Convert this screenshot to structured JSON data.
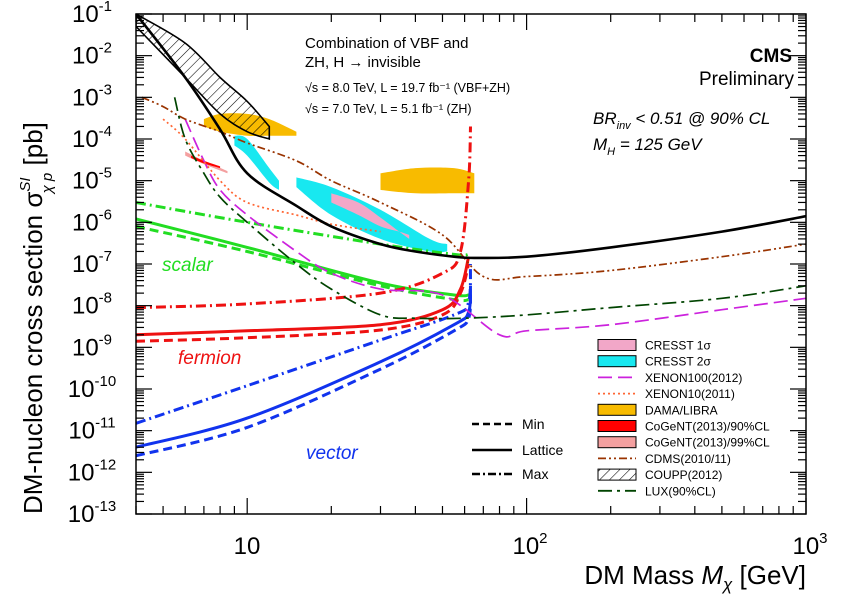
{
  "chart_data": {
    "type": "line",
    "xscale": "log",
    "yscale": "log",
    "xlim": [
      4,
      1000
    ],
    "ylim": [
      1e-13,
      0.1
    ],
    "xlabel": "DM Mass M_χ [GeV]",
    "ylabel": "DM-nucleon cross section σ^{SI}_{χp} [pb]",
    "x_tick_labels": [
      "10",
      "10^2",
      "10^3"
    ],
    "y_tick_labels": [
      "10^-1",
      "10^-2",
      "10^-3",
      "10^-4",
      "10^-5",
      "10^-6",
      "10^-7",
      "10^-8",
      "10^-9",
      "10^-10",
      "10^-11",
      "10^-12",
      "10^-13"
    ],
    "annotations": {
      "combination": [
        "Combination of VBF and",
        "ZH, H → invisible"
      ],
      "lumi_8tev": "√s = 8.0 TeV, L = 19.7 fb⁻¹ (VBF+ZH)",
      "lumi_7tev": "√s = 7.0 TeV, L = 5.1 fb⁻¹ (ZH)",
      "cms": "CMS",
      "preliminary": "Preliminary",
      "br_limit": "BR_inv < 0.51 @ 90% CL",
      "higgs_mass": "M_H = 125 GeV"
    },
    "series_labels": {
      "scalar": "scalar",
      "fermion": "fermion",
      "vector": "vector"
    },
    "line_style_key": [
      {
        "label": "Min",
        "style": "dashed"
      },
      {
        "label": "Lattice",
        "style": "solid"
      },
      {
        "label": "Max",
        "style": "dash-dot"
      }
    ],
    "legend": [
      {
        "label": "CRESST 1σ",
        "kind": "box",
        "color": "#f2a7c8"
      },
      {
        "label": "CRESST 2σ",
        "kind": "box",
        "color": "#18e8f0"
      },
      {
        "label": "XENON100(2012)",
        "kind": "line",
        "color": "#cc22dd",
        "dash": "longdash"
      },
      {
        "label": "XENON10(2011)",
        "kind": "line",
        "color": "#ff6633",
        "dash": "dotted"
      },
      {
        "label": "DAMA/LIBRA",
        "kind": "box",
        "color": "#f8bb00"
      },
      {
        "label": "CoGeNT(2013)/90%CL",
        "kind": "box",
        "color": "#ff0000"
      },
      {
        "label": "CoGeNT(2013)/99%CL",
        "kind": "box",
        "color": "#f4a0a0"
      },
      {
        "label": "CDMS(2010/11)",
        "kind": "line",
        "color": "#993300",
        "dash": "dashdotdot"
      },
      {
        "label": "COUPP(2012)",
        "kind": "hatch",
        "color": "#000000"
      },
      {
        "label": "LUX(90%CL)",
        "kind": "line",
        "color": "#004400",
        "dash": "longdash-dot"
      }
    ],
    "series": [
      {
        "name": "scalar",
        "style": "dashed",
        "color": "#22dd22",
        "x": [
          4,
          10,
          30,
          55,
          62
        ],
        "y": [
          8e-07,
          2e-07,
          3e-08,
          1.4e-08,
          1.4e-08
        ]
      },
      {
        "name": "scalar",
        "style": "solid",
        "color": "#22dd22",
        "x": [
          4,
          10,
          30,
          55,
          62
        ],
        "y": [
          1.2e-06,
          2.5e-07,
          3.5e-08,
          1.8e-08,
          1.8e-08
        ]
      },
      {
        "name": "scalar",
        "style": "dash-dot",
        "color": "#22dd22",
        "x": [
          4,
          10,
          30,
          55,
          62
        ],
        "y": [
          3e-06,
          1e-06,
          3e-07,
          1.7e-07,
          1.7e-07
        ]
      },
      {
        "name": "fermion",
        "style": "dashed",
        "color": "#ee1111",
        "x": [
          4,
          10,
          30,
          50,
          58,
          62
        ],
        "y": [
          1.4e-09,
          1.7e-09,
          2.6e-09,
          6e-09,
          2e-08,
          1e-07
        ]
      },
      {
        "name": "fermion",
        "style": "solid",
        "color": "#ee1111",
        "x": [
          4,
          10,
          30,
          50,
          58,
          62
        ],
        "y": [
          2e-09,
          2.5e-09,
          3.5e-09,
          8e-09,
          2.5e-08,
          1.5e-07
        ]
      },
      {
        "name": "fermion",
        "style": "dash-dot",
        "color": "#ee1111",
        "x": [
          4,
          10,
          30,
          50,
          58,
          62,
          63
        ],
        "y": [
          9e-09,
          1.1e-08,
          2e-08,
          6e-08,
          2e-07,
          1e-05,
          0.0002
        ]
      },
      {
        "name": "vector",
        "style": "dashed",
        "color": "#1133ee",
        "x": [
          4,
          10,
          30,
          55,
          62,
          63
        ],
        "y": [
          2.5e-12,
          1.2e-11,
          3e-10,
          2.5e-09,
          5e-09,
          2e-08
        ]
      },
      {
        "name": "vector",
        "style": "solid",
        "color": "#1133ee",
        "x": [
          4,
          10,
          30,
          55,
          62,
          63
        ],
        "y": [
          4e-12,
          2e-11,
          4.5e-10,
          3.5e-09,
          7e-09,
          3e-08
        ]
      },
      {
        "name": "vector",
        "style": "dash-dot",
        "color": "#1133ee",
        "x": [
          4,
          10,
          30,
          55,
          62,
          63
        ],
        "y": [
          1.5e-11,
          1.2e-10,
          1.5e-09,
          6e-09,
          1.2e-08,
          1e-07
        ]
      },
      {
        "name": "XENON100(2012)",
        "style": "longdash",
        "color": "#cc22dd",
        "x": [
          6,
          7,
          8,
          10,
          15,
          20,
          30,
          50,
          80,
          100,
          200,
          500,
          1000
        ],
        "y": [
          0.0003,
          3e-05,
          6e-06,
          1.5e-06,
          2e-07,
          6e-08,
          2.5e-08,
          1.8e-08,
          2e-09,
          2.5e-09,
          3.5e-09,
          8e-09,
          1.5e-08
        ]
      },
      {
        "name": "XENON10(2011)",
        "style": "dotted",
        "color": "#ff6633",
        "x": [
          5,
          6,
          8,
          10,
          15,
          20,
          30
        ],
        "y": [
          0.0003,
          0.0001,
          1e-05,
          3e-06,
          1.5e-06,
          9e-07,
          6e-07
        ]
      },
      {
        "name": "CDMS(2010/11)",
        "style": "dashdotdot",
        "color": "#993300",
        "x": [
          4.2,
          5,
          6,
          8,
          10,
          15,
          20,
          30,
          50,
          70,
          100,
          200,
          500,
          1000
        ],
        "y": [
          0.001,
          0.0006,
          0.0003,
          0.00015,
          8e-05,
          3e-05,
          1e-05,
          3e-06,
          5e-07,
          5e-08,
          5e-08,
          7e-08,
          1.5e-07,
          3e-07
        ]
      },
      {
        "name": "LUX(90%CL)",
        "style": "longdash-dot",
        "color": "#004400",
        "x": [
          5.5,
          6,
          7,
          8,
          10,
          15,
          20,
          30,
          40,
          60,
          100,
          200,
          500,
          1000
        ],
        "y": [
          0.001,
          0.0001,
          1.5e-05,
          4e-06,
          1e-06,
          1e-07,
          2.5e-08,
          6e-09,
          5e-09,
          5e-09,
          6e-09,
          9e-09,
          1.5e-08,
          3e-08
        ]
      },
      {
        "name": "combined limit",
        "style": "solid",
        "color": "#000000",
        "x": [
          4,
          6,
          8,
          10,
          15,
          20,
          30,
          40,
          55,
          65,
          100,
          200,
          500,
          1000
        ],
        "y": [
          0.1,
          0.003,
          0.00017,
          1.5e-05,
          2.5e-06,
          8e-07,
          3e-07,
          2e-07,
          1.5e-07,
          1.4e-07,
          1.5e-07,
          2.5e-07,
          6e-07,
          1.4e-06
        ]
      }
    ],
    "regions": [
      {
        "name": "DAMA/LIBRA",
        "color": "#f8bb00",
        "upper_x": [
          7,
          8,
          10,
          12,
          15
        ],
        "upper_y": [
          0.0003,
          0.0004,
          0.0004,
          0.0003,
          0.00015
        ],
        "lower_x": [
          15,
          12,
          10,
          8,
          7
        ],
        "lower_y": [
          0.00012,
          0.00012,
          0.00012,
          0.00015,
          0.0002
        ]
      },
      {
        "name": "DAMA/LIBRA",
        "color": "#f8bb00",
        "upper_x": [
          30,
          40,
          55,
          65
        ],
        "upper_y": [
          1.5e-05,
          2e-05,
          2e-05,
          1.5e-05
        ],
        "lower_x": [
          65,
          55,
          40,
          30
        ],
        "lower_y": [
          5e-06,
          5e-06,
          5e-06,
          6e-06
        ]
      },
      {
        "name": "CRESST 2σ",
        "color": "#18e8f0",
        "upper_x": [
          9,
          10,
          12,
          13
        ],
        "upper_y": [
          0.00012,
          0.0001,
          2e-05,
          1e-05
        ],
        "lower_x": [
          13,
          12,
          10,
          9
        ],
        "lower_y": [
          6e-06,
          9e-06,
          4e-05,
          7e-05
        ]
      },
      {
        "name": "CRESST 2σ",
        "color": "#18e8f0",
        "upper_x": [
          15,
          20,
          30,
          45,
          52
        ],
        "upper_y": [
          1.2e-05,
          7e-06,
          2e-06,
          4e-07,
          3e-07
        ],
        "lower_x": [
          52,
          45,
          30,
          20,
          15
        ],
        "lower_y": [
          2e-07,
          2e-07,
          4e-07,
          1.5e-06,
          7e-06
        ]
      },
      {
        "name": "CRESST 1σ",
        "color": "#f2a7c8",
        "upper_x": [
          20,
          25,
          30,
          35,
          38
        ],
        "upper_y": [
          5e-06,
          3e-06,
          1.3e-06,
          6e-07,
          4e-07
        ],
        "lower_x": [
          38,
          35,
          30,
          25,
          20
        ],
        "lower_y": [
          5e-07,
          6e-07,
          8e-07,
          1.5e-06,
          3e-06
        ]
      },
      {
        "name": "CoGeNT(2013)/99%CL",
        "color": "#f4a0a0",
        "upper_x": [
          6,
          7,
          8.5
        ],
        "upper_y": [
          4e-05,
          2.5e-05,
          1.5e-05
        ],
        "lower_x": [
          8.5,
          7,
          6
        ],
        "lower_y": [
          1.7e-05,
          3e-05,
          5e-05
        ]
      },
      {
        "name": "CoGeNT(2013)/90%CL",
        "color": "#ff0000",
        "upper_x": [
          6.3,
          7,
          8
        ],
        "upper_y": [
          3.5e-05,
          2.6e-05,
          2e-05
        ],
        "lower_x": [
          8,
          7,
          6.3
        ],
        "lower_y": [
          2.2e-05,
          3e-05,
          4e-05
        ]
      },
      {
        "name": "COUPP(2012)",
        "color": "#000000",
        "upper_x": [
          4,
          6,
          8,
          10,
          12
        ],
        "upper_y": [
          0.1,
          0.02,
          0.003,
          0.0008,
          0.0002
        ],
        "lower_x": [
          12,
          10,
          8,
          6,
          4
        ],
        "lower_y": [
          0.0001,
          0.00015,
          0.0004,
          0.003,
          0.05
        ]
      }
    ]
  }
}
